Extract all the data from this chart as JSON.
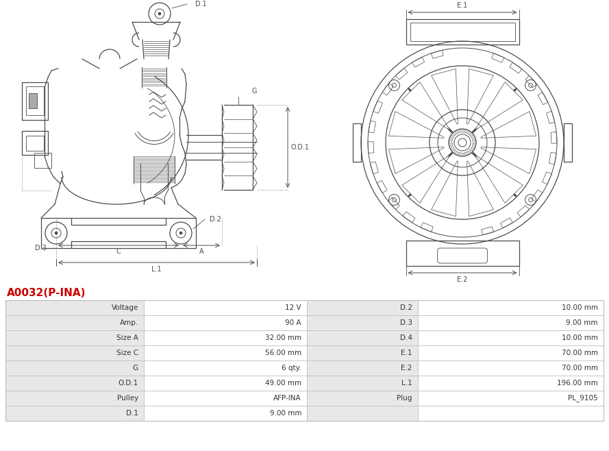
{
  "title": "A0032(P-INA)",
  "title_color": "#cc0000",
  "bg_color": "#ffffff",
  "table_row_bg_odd": "#e8e8e8",
  "table_row_bg_even": "#ffffff",
  "table_border_color": "#bbbbbb",
  "line_color": "#4a4a4a",
  "rows": [
    [
      "Voltage",
      "12 V",
      "D.2",
      "10.00 mm"
    ],
    [
      "Amp.",
      "90 A",
      "D.3",
      "9.00 mm"
    ],
    [
      "Size A",
      "32.00 mm",
      "D.4",
      "10.00 mm"
    ],
    [
      "Size C",
      "56.00 mm",
      "E.1",
      "70.00 mm"
    ],
    [
      "G",
      "6 qty.",
      "E.2",
      "70.00 mm"
    ],
    [
      "O.D.1",
      "49.00 mm",
      "L.1",
      "196.00 mm"
    ],
    [
      "Pulley",
      "AFP-INA",
      "Plug",
      "PL_9105"
    ],
    [
      "D.1",
      "9.00 mm",
      "",
      ""
    ]
  ],
  "figsize": [
    8.89,
    6.58
  ],
  "dpi": 100
}
